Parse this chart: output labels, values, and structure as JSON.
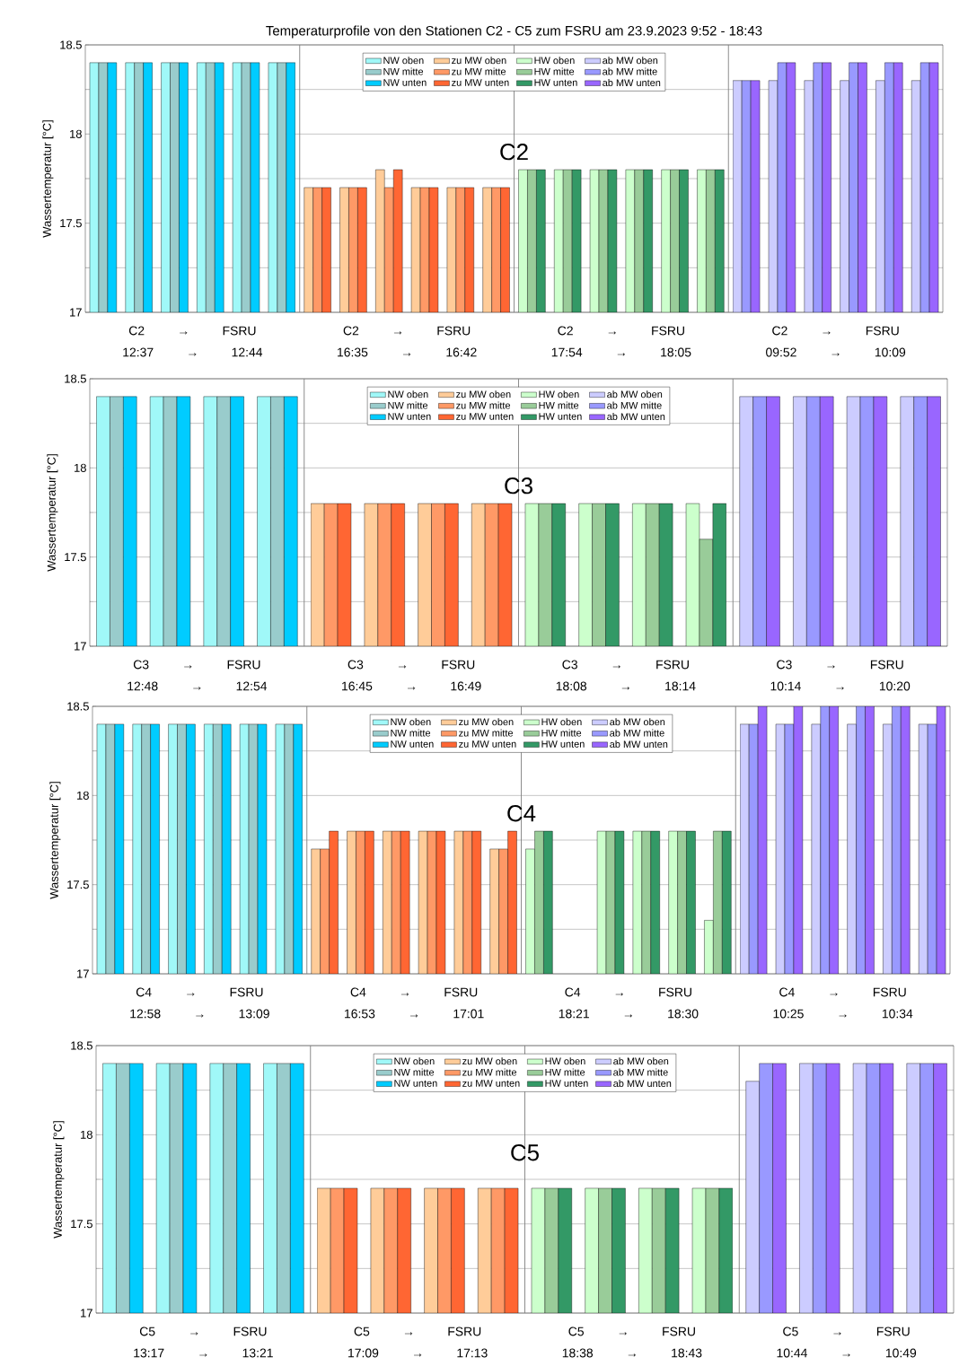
{
  "chart_data": [
    {
      "type": "bar",
      "title": "Temperaturprofile von den Stationen C2 - C5 zum FSRU am 23.9.2023 9:52 - 18:43",
      "ylabel": "Wassertemperatur [°C]",
      "categories": [
        null,
        null,
        null,
        null,
        null,
        null,
        null,
        null,
        null,
        null,
        null,
        null,
        null,
        null,
        null,
        null,
        null,
        null,
        null,
        null,
        null,
        null,
        null,
        null
      ],
      "ylim": [
        17,
        18.5
      ],
      "yticks": [
        17,
        {
          "value": 17.25,
          "label": null
        },
        17.5,
        {
          "value": 17.75,
          "label": null
        },
        18,
        {
          "value": 18.25,
          "label": null
        },
        18.5
      ],
      "grid": "y",
      "legend": "top",
      "annotations": [
        "C2",
        "C2 → FSRU",
        "12:37 → 12:44",
        "C2 → FSRU",
        "16:35 → 16:42",
        "C2 → FSRU",
        "17:54 → 18:05",
        "C2 → FSRU",
        "09:52 → 10:09"
      ],
      "series": [
        {
          "name": "NW oben",
          "color": "#a0f8f8",
          "values": [
            18.4,
            18.4,
            18.4,
            18.4,
            18.4,
            18.4,
            null,
            null,
            null,
            null,
            null,
            null,
            null,
            null,
            null,
            null,
            null,
            null,
            null,
            null,
            null,
            null,
            null,
            null
          ]
        },
        {
          "name": "NW mitte",
          "color": "#99cccc",
          "values": [
            18.4,
            18.4,
            18.4,
            18.4,
            18.4,
            18.4,
            null,
            null,
            null,
            null,
            null,
            null,
            null,
            null,
            null,
            null,
            null,
            null,
            null,
            null,
            null,
            null,
            null,
            null
          ]
        },
        {
          "name": "NW unten",
          "color": "#00ccff",
          "values": [
            18.4,
            18.4,
            18.4,
            18.4,
            18.4,
            18.4,
            null,
            null,
            null,
            null,
            null,
            null,
            null,
            null,
            null,
            null,
            null,
            null,
            null,
            null,
            null,
            null,
            null,
            null
          ]
        },
        {
          "name": "zu MW oben",
          "color": "#ffcc99",
          "values": [
            null,
            null,
            null,
            null,
            null,
            null,
            17.7,
            17.7,
            17.8,
            17.7,
            17.7,
            17.7,
            null,
            null,
            null,
            null,
            null,
            null,
            null,
            null,
            null,
            null,
            null,
            null
          ]
        },
        {
          "name": "zu MW mitte",
          "color": "#ff9966",
          "values": [
            null,
            null,
            null,
            null,
            null,
            null,
            17.7,
            17.7,
            17.7,
            17.7,
            17.7,
            17.7,
            null,
            null,
            null,
            null,
            null,
            null,
            null,
            null,
            null,
            null,
            null,
            null
          ]
        },
        {
          "name": "zu MW unten",
          "color": "#ff6633",
          "values": [
            null,
            null,
            null,
            null,
            null,
            null,
            17.7,
            17.7,
            17.8,
            17.7,
            17.7,
            17.7,
            null,
            null,
            null,
            null,
            null,
            null,
            null,
            null,
            null,
            null,
            null,
            null
          ]
        },
        {
          "name": "HW oben",
          "color": "#ccffcc",
          "values": [
            null,
            null,
            null,
            null,
            null,
            null,
            null,
            null,
            null,
            null,
            null,
            null,
            17.8,
            17.8,
            17.8,
            17.8,
            17.8,
            17.8,
            null,
            null,
            null,
            null,
            null,
            null
          ]
        },
        {
          "name": "HW mitte",
          "color": "#99cc99",
          "values": [
            null,
            null,
            null,
            null,
            null,
            null,
            null,
            null,
            null,
            null,
            null,
            null,
            17.8,
            17.8,
            17.8,
            17.8,
            17.8,
            17.8,
            null,
            null,
            null,
            null,
            null,
            null
          ]
        },
        {
          "name": "HW unten",
          "color": "#339966",
          "values": [
            null,
            null,
            null,
            null,
            null,
            null,
            null,
            null,
            null,
            null,
            null,
            null,
            17.8,
            17.8,
            17.8,
            17.8,
            17.8,
            17.8,
            null,
            null,
            null,
            null,
            null,
            null
          ]
        },
        {
          "name": "ab MW oben",
          "color": "#ccccff",
          "values": [
            null,
            null,
            null,
            null,
            null,
            null,
            null,
            null,
            null,
            null,
            null,
            null,
            null,
            null,
            null,
            null,
            null,
            null,
            18.3,
            18.3,
            18.3,
            18.3,
            18.3,
            18.3
          ]
        },
        {
          "name": "ab MW mitte",
          "color": "#9999ff",
          "values": [
            null,
            null,
            null,
            null,
            null,
            null,
            null,
            null,
            null,
            null,
            null,
            null,
            null,
            null,
            null,
            null,
            null,
            null,
            18.3,
            18.4,
            18.4,
            18.4,
            18.4,
            18.4
          ]
        },
        {
          "name": "ab MW unten",
          "color": "#9966ff",
          "values": [
            null,
            null,
            null,
            null,
            null,
            null,
            null,
            null,
            null,
            null,
            null,
            null,
            null,
            null,
            null,
            null,
            null,
            null,
            18.3,
            18.4,
            18.4,
            18.4,
            18.4,
            18.4
          ]
        }
      ]
    },
    {
      "type": "bar",
      "ylabel": "Wassertemperatur [°C]",
      "categories": [
        null,
        null,
        null,
        null,
        null,
        null,
        null,
        null,
        null,
        null,
        null,
        null,
        null,
        null,
        null,
        null
      ],
      "ylim": [
        17,
        18.5
      ],
      "yticks": [
        17,
        {
          "value": 17.25,
          "label": null
        },
        17.5,
        {
          "value": 17.75,
          "label": null
        },
        18,
        {
          "value": 18.25,
          "label": null
        },
        18.5
      ],
      "grid": "y",
      "legend": "top",
      "annotations": [
        "C3",
        "C3 → FSRU",
        "12:48 → 12:54",
        "C3 → FSRU",
        "16:45 → 16:49",
        "C3 → FSRU",
        "18:08 → 18:14",
        "C3 → FSRU",
        "10:14 → 10:20"
      ],
      "series": [
        {
          "name": "NW oben",
          "color": "#a0f8f8",
          "values": [
            18.4,
            18.4,
            18.4,
            18.4,
            null,
            null,
            null,
            null,
            null,
            null,
            null,
            null,
            null,
            null,
            null,
            null
          ]
        },
        {
          "name": "NW mitte",
          "color": "#99cccc",
          "values": [
            18.4,
            18.4,
            18.4,
            18.4,
            null,
            null,
            null,
            null,
            null,
            null,
            null,
            null,
            null,
            null,
            null,
            null
          ]
        },
        {
          "name": "NW unten",
          "color": "#00ccff",
          "values": [
            18.4,
            18.4,
            18.4,
            18.4,
            null,
            null,
            null,
            null,
            null,
            null,
            null,
            null,
            null,
            null,
            null,
            null
          ]
        },
        {
          "name": "zu MW oben",
          "color": "#ffcc99",
          "values": [
            null,
            null,
            null,
            null,
            17.8,
            17.8,
            17.8,
            17.8,
            null,
            null,
            null,
            null,
            null,
            null,
            null,
            null
          ]
        },
        {
          "name": "zu MW mitte",
          "color": "#ff9966",
          "values": [
            null,
            null,
            null,
            null,
            17.8,
            17.8,
            17.8,
            17.8,
            null,
            null,
            null,
            null,
            null,
            null,
            null,
            null
          ]
        },
        {
          "name": "zu MW unten",
          "color": "#ff6633",
          "values": [
            null,
            null,
            null,
            null,
            17.8,
            17.8,
            17.8,
            17.8,
            null,
            null,
            null,
            null,
            null,
            null,
            null,
            null
          ]
        },
        {
          "name": "HW oben",
          "color": "#ccffcc",
          "values": [
            null,
            null,
            null,
            null,
            null,
            null,
            null,
            null,
            17.8,
            17.8,
            17.8,
            17.8,
            null,
            null,
            null,
            null
          ]
        },
        {
          "name": "HW mitte",
          "color": "#99cc99",
          "values": [
            null,
            null,
            null,
            null,
            null,
            null,
            null,
            null,
            17.8,
            17.8,
            17.8,
            17.6,
            null,
            null,
            null,
            null
          ]
        },
        {
          "name": "HW unten",
          "color": "#339966",
          "values": [
            null,
            null,
            null,
            null,
            null,
            null,
            null,
            null,
            17.8,
            17.8,
            17.8,
            17.8,
            null,
            null,
            null,
            null
          ]
        },
        {
          "name": "ab MW oben",
          "color": "#ccccff",
          "values": [
            null,
            null,
            null,
            null,
            null,
            null,
            null,
            null,
            null,
            null,
            null,
            null,
            18.4,
            18.4,
            18.4,
            18.4
          ]
        },
        {
          "name": "ab MW mitte",
          "color": "#9999ff",
          "values": [
            null,
            null,
            null,
            null,
            null,
            null,
            null,
            null,
            null,
            null,
            null,
            null,
            18.4,
            18.4,
            18.4,
            18.4
          ]
        },
        {
          "name": "ab MW unten",
          "color": "#9966ff",
          "values": [
            null,
            null,
            null,
            null,
            null,
            null,
            null,
            null,
            null,
            null,
            null,
            null,
            18.4,
            18.4,
            18.4,
            18.4
          ]
        }
      ]
    },
    {
      "type": "bar",
      "ylabel": "Wassertemperatur [°C]",
      "categories": [
        null,
        null,
        null,
        null,
        null,
        null,
        null,
        null,
        null,
        null,
        null,
        null,
        null,
        null,
        null,
        null,
        null,
        null,
        null,
        null,
        null,
        null,
        null,
        null
      ],
      "ylim": [
        17,
        18.5
      ],
      "yticks": [
        17,
        {
          "value": 17.25,
          "label": null
        },
        17.5,
        {
          "value": 17.75,
          "label": null
        },
        18,
        {
          "value": 18.25,
          "label": null
        },
        18.5
      ],
      "grid": "y",
      "legend": "top",
      "annotations": [
        "C4",
        "C4 → FSRU",
        "12:58 → 13:09",
        "C4 → FSRU",
        "16:53 → 17:01",
        "C4 → FSRU",
        "18:21 → 18:30",
        "C4 → FSRU",
        "10:25 → 10:34"
      ],
      "series": [
        {
          "name": "NW oben",
          "color": "#a0f8f8",
          "values": [
            18.4,
            18.4,
            18.4,
            18.4,
            18.4,
            18.4,
            null,
            null,
            null,
            null,
            null,
            null,
            null,
            null,
            null,
            null,
            null,
            null,
            null,
            null,
            null,
            null,
            null,
            null
          ]
        },
        {
          "name": "NW mitte",
          "color": "#99cccc",
          "values": [
            18.4,
            18.4,
            18.4,
            18.4,
            18.4,
            18.4,
            null,
            null,
            null,
            null,
            null,
            null,
            null,
            null,
            null,
            null,
            null,
            null,
            null,
            null,
            null,
            null,
            null,
            null
          ]
        },
        {
          "name": "NW unten",
          "color": "#00ccff",
          "values": [
            18.4,
            18.4,
            18.4,
            18.4,
            18.4,
            18.4,
            null,
            null,
            null,
            null,
            null,
            null,
            null,
            null,
            null,
            null,
            null,
            null,
            null,
            null,
            null,
            null,
            null,
            null
          ]
        },
        {
          "name": "zu MW oben",
          "color": "#ffcc99",
          "values": [
            null,
            null,
            null,
            null,
            null,
            null,
            17.7,
            17.8,
            17.8,
            17.8,
            17.8,
            17.7,
            null,
            null,
            null,
            null,
            null,
            null,
            null,
            null,
            null,
            null,
            null,
            null
          ]
        },
        {
          "name": "zu MW mitte",
          "color": "#ff9966",
          "values": [
            null,
            null,
            null,
            null,
            null,
            null,
            17.7,
            17.8,
            17.8,
            17.8,
            17.8,
            17.7,
            null,
            null,
            null,
            null,
            null,
            null,
            null,
            null,
            null,
            null,
            null,
            null
          ]
        },
        {
          "name": "zu MW unten",
          "color": "#ff6633",
          "values": [
            null,
            null,
            null,
            null,
            null,
            null,
            17.8,
            17.8,
            17.8,
            17.8,
            17.8,
            17.8,
            null,
            null,
            null,
            null,
            null,
            null,
            null,
            null,
            null,
            null,
            null,
            null
          ]
        },
        {
          "name": "HW oben",
          "color": "#ccffcc",
          "values": [
            null,
            null,
            null,
            null,
            null,
            null,
            null,
            null,
            null,
            null,
            null,
            null,
            17.7,
            null,
            17.8,
            17.8,
            17.8,
            17.3,
            null,
            null,
            null,
            null,
            null,
            null
          ]
        },
        {
          "name": "HW mitte",
          "color": "#99cc99",
          "values": [
            null,
            null,
            null,
            null,
            null,
            null,
            null,
            null,
            null,
            null,
            null,
            null,
            17.8,
            null,
            17.8,
            17.8,
            17.8,
            17.8,
            null,
            null,
            null,
            null,
            null,
            null
          ]
        },
        {
          "name": "HW unten",
          "color": "#339966",
          "values": [
            null,
            null,
            null,
            null,
            null,
            null,
            null,
            null,
            null,
            null,
            null,
            null,
            17.8,
            null,
            17.8,
            17.8,
            17.8,
            17.8,
            null,
            null,
            null,
            null,
            null,
            null
          ]
        },
        {
          "name": "ab MW oben",
          "color": "#ccccff",
          "values": [
            null,
            null,
            null,
            null,
            null,
            null,
            null,
            null,
            null,
            null,
            null,
            null,
            null,
            null,
            null,
            null,
            null,
            null,
            18.4,
            18.4,
            18.4,
            18.4,
            18.4,
            18.4
          ]
        },
        {
          "name": "ab MW mitte",
          "color": "#9999ff",
          "values": [
            null,
            null,
            null,
            null,
            null,
            null,
            null,
            null,
            null,
            null,
            null,
            null,
            null,
            null,
            null,
            null,
            null,
            null,
            18.4,
            18.4,
            18.5,
            18.5,
            18.5,
            18.4
          ]
        },
        {
          "name": "ab MW unten",
          "color": "#9966ff",
          "values": [
            null,
            null,
            null,
            null,
            null,
            null,
            null,
            null,
            null,
            null,
            null,
            null,
            null,
            null,
            null,
            null,
            null,
            null,
            18.5,
            18.5,
            18.5,
            18.5,
            18.5,
            18.5
          ]
        }
      ]
    },
    {
      "type": "bar",
      "ylabel": "Wassertemperatur [°C]",
      "categories": [
        null,
        null,
        null,
        null,
        null,
        null,
        null,
        null,
        null,
        null,
        null,
        null,
        null,
        null,
        null,
        null
      ],
      "ylim": [
        17,
        18.5
      ],
      "yticks": [
        17,
        {
          "value": 17.25,
          "label": null
        },
        17.5,
        {
          "value": 17.75,
          "label": null
        },
        18,
        {
          "value": 18.25,
          "label": null
        },
        18.5
      ],
      "grid": "y",
      "legend": "top",
      "annotations": [
        "C5",
        "C5 → FSRU",
        "13:17 → 13:21",
        "C5 → FSRU",
        "17:09 → 17:13",
        "C5 → FSRU",
        "18:38 → 18:43",
        "C5 → FSRU",
        "10:44 → 10:49"
      ],
      "series": [
        {
          "name": "NW oben",
          "color": "#a0f8f8",
          "values": [
            18.4,
            18.4,
            18.4,
            18.4,
            null,
            null,
            null,
            null,
            null,
            null,
            null,
            null,
            null,
            null,
            null,
            null
          ]
        },
        {
          "name": "NW mitte",
          "color": "#99cccc",
          "values": [
            18.4,
            18.4,
            18.4,
            18.4,
            null,
            null,
            null,
            null,
            null,
            null,
            null,
            null,
            null,
            null,
            null,
            null
          ]
        },
        {
          "name": "NW unten",
          "color": "#00ccff",
          "values": [
            18.4,
            18.4,
            18.4,
            18.4,
            null,
            null,
            null,
            null,
            null,
            null,
            null,
            null,
            null,
            null,
            null,
            null
          ]
        },
        {
          "name": "zu MW oben",
          "color": "#ffcc99",
          "values": [
            null,
            null,
            null,
            null,
            17.7,
            17.7,
            17.7,
            17.7,
            null,
            null,
            null,
            null,
            null,
            null,
            null,
            null
          ]
        },
        {
          "name": "zu MW mitte",
          "color": "#ff9966",
          "values": [
            null,
            null,
            null,
            null,
            17.7,
            17.7,
            17.7,
            17.7,
            null,
            null,
            null,
            null,
            null,
            null,
            null,
            null
          ]
        },
        {
          "name": "zu MW unten",
          "color": "#ff6633",
          "values": [
            null,
            null,
            null,
            null,
            17.7,
            17.7,
            17.7,
            17.7,
            null,
            null,
            null,
            null,
            null,
            null,
            null,
            null
          ]
        },
        {
          "name": "HW oben",
          "color": "#ccffcc",
          "values": [
            null,
            null,
            null,
            null,
            null,
            null,
            null,
            null,
            17.7,
            17.7,
            17.7,
            17.7,
            null,
            null,
            null,
            null
          ]
        },
        {
          "name": "HW mitte",
          "color": "#99cc99",
          "values": [
            null,
            null,
            null,
            null,
            null,
            null,
            null,
            null,
            17.7,
            17.7,
            17.7,
            17.7,
            null,
            null,
            null,
            null
          ]
        },
        {
          "name": "HW unten",
          "color": "#339966",
          "values": [
            null,
            null,
            null,
            null,
            null,
            null,
            null,
            null,
            17.7,
            17.7,
            17.7,
            17.7,
            null,
            null,
            null,
            null
          ]
        },
        {
          "name": "ab MW oben",
          "color": "#ccccff",
          "values": [
            null,
            null,
            null,
            null,
            null,
            null,
            null,
            null,
            null,
            null,
            null,
            null,
            18.3,
            18.4,
            18.4,
            18.4
          ]
        },
        {
          "name": "ab MW mitte",
          "color": "#9999ff",
          "values": [
            null,
            null,
            null,
            null,
            null,
            null,
            null,
            null,
            null,
            null,
            null,
            null,
            18.4,
            18.4,
            18.4,
            18.4
          ]
        },
        {
          "name": "ab MW unten",
          "color": "#9966ff",
          "values": [
            null,
            null,
            null,
            null,
            null,
            null,
            null,
            null,
            null,
            null,
            null,
            null,
            18.4,
            18.4,
            18.4,
            18.4
          ]
        }
      ]
    }
  ]
}
